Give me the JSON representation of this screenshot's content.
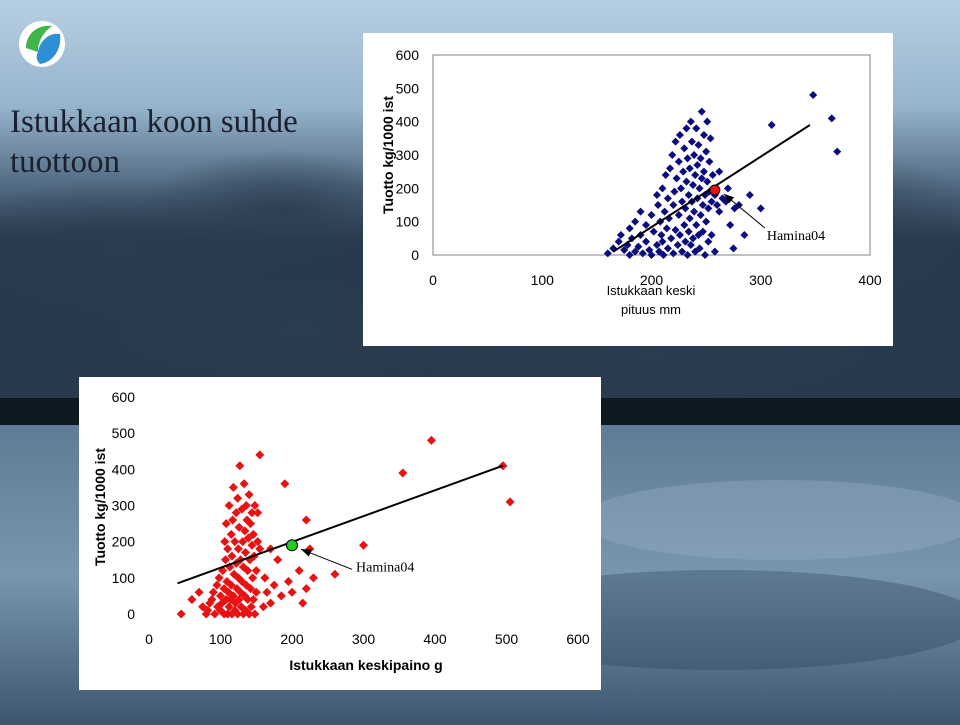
{
  "slide": {
    "title_line1": "Istukkaan koon suhde",
    "title_line2": "tuottoon",
    "logo_icon": "fish-drop-logo-icon"
  },
  "colors": {
    "series_top": "#0b0b7e",
    "series_bottom": "#e81212",
    "highlight_top": "#e81212",
    "highlight_bottom": "#22cc22",
    "trend": "#000000"
  },
  "chart_data": [
    {
      "type": "scatter",
      "xlabel_line1": "Istukkaan keski",
      "xlabel_line2": "pituus mm",
      "ylabel": "Tuotto kg/1000 ist",
      "xlim": [
        0,
        400
      ],
      "ylim": [
        0,
        600
      ],
      "xticks": [
        "0",
        "100",
        "200",
        "300",
        "400"
      ],
      "yticks": [
        "0",
        "100",
        "200",
        "300",
        "400",
        "500",
        "600"
      ],
      "grid": false,
      "trendline": [
        [
          165,
          10
        ],
        [
          345,
          390
        ]
      ],
      "highlight": {
        "label": "Hamina04",
        "x": 258,
        "y": 195
      },
      "points": [
        [
          160,
          5
        ],
        [
          165,
          20
        ],
        [
          170,
          40
        ],
        [
          172,
          60
        ],
        [
          175,
          15
        ],
        [
          178,
          30
        ],
        [
          180,
          0
        ],
        [
          180,
          80
        ],
        [
          182,
          50
        ],
        [
          185,
          100
        ],
        [
          185,
          10
        ],
        [
          188,
          25
        ],
        [
          190,
          60
        ],
        [
          190,
          130
        ],
        [
          192,
          5
        ],
        [
          195,
          40
        ],
        [
          195,
          90
        ],
        [
          198,
          15
        ],
        [
          200,
          120
        ],
        [
          200,
          0
        ],
        [
          202,
          70
        ],
        [
          205,
          30
        ],
        [
          205,
          180
        ],
        [
          206,
          150
        ],
        [
          207,
          10
        ],
        [
          208,
          100
        ],
        [
          209,
          60
        ],
        [
          210,
          200
        ],
        [
          210,
          40
        ],
        [
          211,
          0
        ],
        [
          212,
          130
        ],
        [
          213,
          240
        ],
        [
          214,
          80
        ],
        [
          215,
          20
        ],
        [
          215,
          170
        ],
        [
          216,
          110
        ],
        [
          217,
          260
        ],
        [
          218,
          50
        ],
        [
          219,
          300
        ],
        [
          220,
          150
        ],
        [
          220,
          5
        ],
        [
          221,
          190
        ],
        [
          222,
          75
        ],
        [
          222,
          340
        ],
        [
          223,
          230
        ],
        [
          224,
          30
        ],
        [
          225,
          120
        ],
        [
          225,
          280
        ],
        [
          226,
          60
        ],
        [
          226,
          360
        ],
        [
          227,
          200
        ],
        [
          228,
          10
        ],
        [
          228,
          160
        ],
        [
          229,
          250
        ],
        [
          230,
          90
        ],
        [
          230,
          320
        ],
        [
          231,
          40
        ],
        [
          231,
          140
        ],
        [
          232,
          380
        ],
        [
          232,
          220
        ],
        [
          233,
          0
        ],
        [
          233,
          290
        ],
        [
          234,
          70
        ],
        [
          234,
          180
        ],
        [
          235,
          260
        ],
        [
          235,
          110
        ],
        [
          236,
          400
        ],
        [
          236,
          30
        ],
        [
          237,
          340
        ],
        [
          237,
          160
        ],
        [
          238,
          210
        ],
        [
          238,
          50
        ],
        [
          239,
          300
        ],
        [
          239,
          130
        ],
        [
          240,
          240
        ],
        [
          240,
          10
        ],
        [
          241,
          380
        ],
        [
          241,
          90
        ],
        [
          242,
          170
        ],
        [
          242,
          270
        ],
        [
          243,
          60
        ],
        [
          243,
          330
        ],
        [
          244,
          200
        ],
        [
          244,
          20
        ],
        [
          245,
          120
        ],
        [
          245,
          290
        ],
        [
          246,
          230
        ],
        [
          246,
          430
        ],
        [
          247,
          150
        ],
        [
          247,
          70
        ],
        [
          248,
          360
        ],
        [
          248,
          250
        ],
        [
          249,
          180
        ],
        [
          249,
          0
        ],
        [
          250,
          310
        ],
        [
          250,
          100
        ],
        [
          251,
          220
        ],
        [
          251,
          400
        ],
        [
          252,
          140
        ],
        [
          252,
          40
        ],
        [
          253,
          280
        ],
        [
          253,
          190
        ],
        [
          254,
          350
        ],
        [
          255,
          160
        ],
        [
          255,
          60
        ],
        [
          256,
          240
        ],
        [
          258,
          180
        ],
        [
          258,
          10
        ],
        [
          260,
          150
        ],
        [
          262,
          130
        ],
        [
          262,
          250
        ],
        [
          265,
          170
        ],
        [
          268,
          160
        ],
        [
          270,
          200
        ],
        [
          272,
          90
        ],
        [
          275,
          20
        ],
        [
          276,
          140
        ],
        [
          280,
          150
        ],
        [
          285,
          60
        ],
        [
          290,
          180
        ],
        [
          300,
          140
        ],
        [
          310,
          390
        ],
        [
          348,
          480
        ],
        [
          365,
          410
        ],
        [
          370,
          310
        ]
      ]
    },
    {
      "type": "scatter",
      "xlabel": "Istukkaan keskipaino g",
      "ylabel": "Tuotto kg/1000 ist",
      "xlim": [
        0,
        600
      ],
      "ylim": [
        0,
        600
      ],
      "xticks": [
        "0",
        "100",
        "200",
        "300",
        "400",
        "500",
        "600"
      ],
      "yticks": [
        "0",
        "100",
        "200",
        "300",
        "400",
        "500",
        "600"
      ],
      "grid": false,
      "trendline": [
        [
          40,
          85
        ],
        [
          495,
          410
        ]
      ],
      "highlight": {
        "label": "Hamina04",
        "x": 200,
        "y": 190
      },
      "points": [
        [
          45,
          0
        ],
        [
          60,
          40
        ],
        [
          70,
          60
        ],
        [
          75,
          20
        ],
        [
          80,
          0
        ],
        [
          82,
          10
        ],
        [
          85,
          30
        ],
        [
          88,
          40
        ],
        [
          90,
          60
        ],
        [
          92,
          0
        ],
        [
          95,
          80
        ],
        [
          96,
          20
        ],
        [
          98,
          100
        ],
        [
          100,
          50
        ],
        [
          100,
          10
        ],
        [
          102,
          30
        ],
        [
          103,
          120
        ],
        [
          105,
          0
        ],
        [
          105,
          70
        ],
        [
          106,
          200
        ],
        [
          107,
          150
        ],
        [
          108,
          40
        ],
        [
          108,
          250
        ],
        [
          109,
          90
        ],
        [
          110,
          0
        ],
        [
          110,
          180
        ],
        [
          111,
          60
        ],
        [
          112,
          20
        ],
        [
          112,
          300
        ],
        [
          113,
          130
        ],
        [
          114,
          40
        ],
        [
          115,
          220
        ],
        [
          115,
          80
        ],
        [
          116,
          0
        ],
        [
          116,
          160
        ],
        [
          117,
          260
        ],
        [
          118,
          50
        ],
        [
          118,
          350
        ],
        [
          119,
          110
        ],
        [
          120,
          200
        ],
        [
          120,
          10
        ],
        [
          121,
          30
        ],
        [
          122,
          280
        ],
        [
          122,
          140
        ],
        [
          123,
          70
        ],
        [
          124,
          320
        ],
        [
          124,
          0
        ],
        [
          125,
          180
        ],
        [
          125,
          100
        ],
        [
          126,
          40
        ],
        [
          126,
          240
        ],
        [
          127,
          410
        ],
        [
          128,
          60
        ],
        [
          128,
          150
        ],
        [
          129,
          20
        ],
        [
          130,
          290
        ],
        [
          130,
          90
        ],
        [
          131,
          200
        ],
        [
          132,
          0
        ],
        [
          132,
          130
        ],
        [
          133,
          360
        ],
        [
          134,
          50
        ],
        [
          134,
          230
        ],
        [
          135,
          170
        ],
        [
          135,
          10
        ],
        [
          136,
          80
        ],
        [
          136,
          300
        ],
        [
          137,
          260
        ],
        [
          138,
          120
        ],
        [
          138,
          40
        ],
        [
          139,
          210
        ],
        [
          140,
          0
        ],
        [
          140,
          330
        ],
        [
          141,
          150
        ],
        [
          142,
          70
        ],
        [
          142,
          250
        ],
        [
          143,
          20
        ],
        [
          144,
          190
        ],
        [
          144,
          280
        ],
        [
          145,
          100
        ],
        [
          146,
          40
        ],
        [
          146,
          220
        ],
        [
          147,
          160
        ],
        [
          148,
          300
        ],
        [
          148,
          0
        ],
        [
          150,
          120
        ],
        [
          150,
          60
        ],
        [
          152,
          200
        ],
        [
          152,
          280
        ],
        [
          155,
          180
        ],
        [
          155,
          440
        ],
        [
          160,
          20
        ],
        [
          162,
          100
        ],
        [
          165,
          60
        ],
        [
          170,
          180
        ],
        [
          170,
          30
        ],
        [
          175,
          80
        ],
        [
          180,
          150
        ],
        [
          185,
          50
        ],
        [
          190,
          360
        ],
        [
          195,
          90
        ],
        [
          200,
          60
        ],
        [
          210,
          120
        ],
        [
          215,
          30
        ],
        [
          220,
          70
        ],
        [
          225,
          180
        ],
        [
          220,
          260
        ],
        [
          230,
          100
        ],
        [
          260,
          110
        ],
        [
          300,
          190
        ],
        [
          355,
          390
        ],
        [
          395,
          480
        ],
        [
          495,
          410
        ],
        [
          505,
          310
        ]
      ]
    }
  ]
}
